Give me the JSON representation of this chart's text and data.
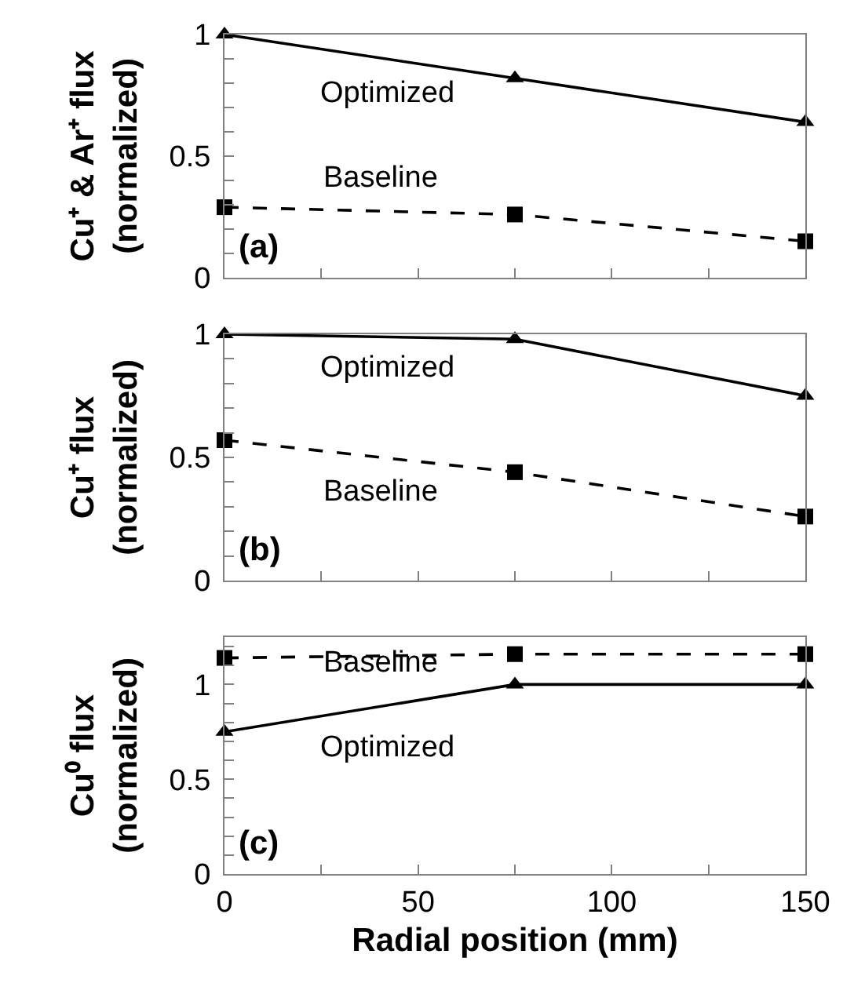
{
  "chart_data": [
    {
      "type": "line",
      "ylabel": "Cu⁺ & Ar⁺ flux (normalized)",
      "x": [
        0,
        75,
        150
      ],
      "xlim": [
        0,
        150
      ],
      "xticks": [
        0,
        {
          "value": 25,
          "label": null
        },
        50,
        {
          "value": 75,
          "label": null
        },
        100,
        {
          "value": 125,
          "label": null
        },
        150
      ],
      "ylim": [
        0,
        1
      ],
      "yticks": [
        0,
        {
          "value": 0.1,
          "label": null
        },
        {
          "value": 0.2,
          "label": null
        },
        {
          "value": 0.3,
          "label": null
        },
        {
          "value": 0.4,
          "label": null
        },
        0.5,
        {
          "value": 0.6,
          "label": null
        },
        {
          "value": 0.7,
          "label": null
        },
        {
          "value": 0.8,
          "label": null
        },
        {
          "value": 0.9,
          "label": null
        },
        1
      ],
      "tick_labels": "y",
      "grid": false,
      "legend": false,
      "annotations": [
        "(a)"
      ],
      "series": [
        {
          "name": "Optimized",
          "color": "#000000",
          "marker": "triangle",
          "line_style": "solid",
          "values": [
            1,
            0.82,
            0.64
          ]
        },
        {
          "name": "Baseline",
          "color": "#000000",
          "marker": "square",
          "line_style": "dashed",
          "values": [
            0.29,
            0.26,
            0.15
          ]
        }
      ]
    },
    {
      "type": "line",
      "ylabel": "Cu⁺ flux (normalized)",
      "x": [
        0,
        75,
        150
      ],
      "xlim": [
        0,
        150
      ],
      "xticks": [
        0,
        {
          "value": 25,
          "label": null
        },
        50,
        {
          "value": 75,
          "label": null
        },
        100,
        {
          "value": 125,
          "label": null
        },
        150
      ],
      "ylim": [
        0,
        1
      ],
      "yticks": [
        0,
        {
          "value": 0.1,
          "label": null
        },
        {
          "value": 0.2,
          "label": null
        },
        {
          "value": 0.3,
          "label": null
        },
        {
          "value": 0.4,
          "label": null
        },
        0.5,
        {
          "value": 0.6,
          "label": null
        },
        {
          "value": 0.7,
          "label": null
        },
        {
          "value": 0.8,
          "label": null
        },
        {
          "value": 0.9,
          "label": null
        },
        1
      ],
      "tick_labels": "y",
      "grid": false,
      "legend": false,
      "annotations": [
        "(b)"
      ],
      "series": [
        {
          "name": "Optimized",
          "color": "#000000",
          "marker": "triangle",
          "line_style": "solid",
          "values": [
            1,
            0.98,
            0.75
          ]
        },
        {
          "name": "Baseline",
          "color": "#000000",
          "marker": "square",
          "line_style": "dashed",
          "values": [
            0.57,
            0.44,
            0.26
          ]
        }
      ]
    },
    {
      "type": "line",
      "ylabel": "Cu⁰ flux (normalized)",
      "xlabel": "Radial position (mm)",
      "x": [
        0,
        75,
        150
      ],
      "xlim": [
        0,
        150
      ],
      "xticks": [
        0,
        {
          "value": 25,
          "label": null
        },
        50,
        {
          "value": 75,
          "label": null
        },
        100,
        {
          "value": 125,
          "label": null
        },
        150
      ],
      "ylim": [
        0,
        1.25
      ],
      "yticks": [
        0,
        {
          "value": 0.1,
          "label": null
        },
        {
          "value": 0.2,
          "label": null
        },
        {
          "value": 0.3,
          "label": null
        },
        {
          "value": 0.4,
          "label": null
        },
        0.5,
        {
          "value": 0.6,
          "label": null
        },
        {
          "value": 0.7,
          "label": null
        },
        {
          "value": 0.8,
          "label": null
        },
        {
          "value": 0.9,
          "label": null
        },
        1,
        {
          "value": 1.1,
          "label": null
        },
        {
          "value": 1.2,
          "label": null
        }
      ],
      "grid": false,
      "legend": false,
      "annotations": [
        "(c)"
      ],
      "series": [
        {
          "name": "Optimized",
          "color": "#000000",
          "marker": "triangle",
          "line_style": "solid",
          "values": [
            0.75,
            1,
            1
          ]
        },
        {
          "name": "Baseline",
          "color": "#000000",
          "marker": "square",
          "line_style": "dashed",
          "values": [
            1.14,
            1.16,
            1.16
          ]
        }
      ]
    }
  ]
}
